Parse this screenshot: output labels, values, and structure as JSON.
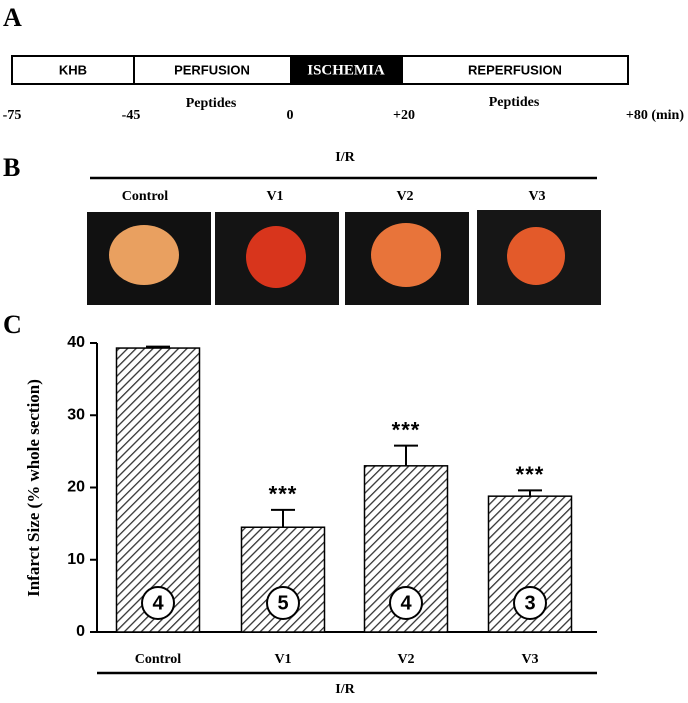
{
  "panel_a": {
    "label": "A",
    "segments": [
      "KHB",
      "PERFUSION",
      "ISCHEMIA",
      "REPERFUSION"
    ],
    "times": [
      "-75",
      "-45",
      "0",
      "+20",
      "+80 (min)"
    ],
    "treatments": [
      "Peptides",
      "Peptides"
    ]
  },
  "panel_b": {
    "label": "B",
    "group": "I/R",
    "labels": [
      "Control",
      "V1",
      "V2",
      "V3"
    ]
  },
  "chart_data": {
    "type": "bar",
    "panel_label": "C",
    "ylabel": "Infarct Size (% whole section)",
    "xlabel": "I/R",
    "categories": [
      "Control",
      "V1",
      "V2",
      "V3"
    ],
    "values": [
      39.3,
      14.5,
      23,
      18.8
    ],
    "errors": [
      0.2,
      2.4,
      2.8,
      0.8
    ],
    "significance": [
      null,
      "***",
      "***",
      "***"
    ],
    "n": [
      4,
      5,
      4,
      3
    ],
    "color": "#333333",
    "ylim": [
      0,
      40
    ],
    "yticks": [
      0,
      10,
      20,
      30,
      40
    ],
    "grid": false
  }
}
